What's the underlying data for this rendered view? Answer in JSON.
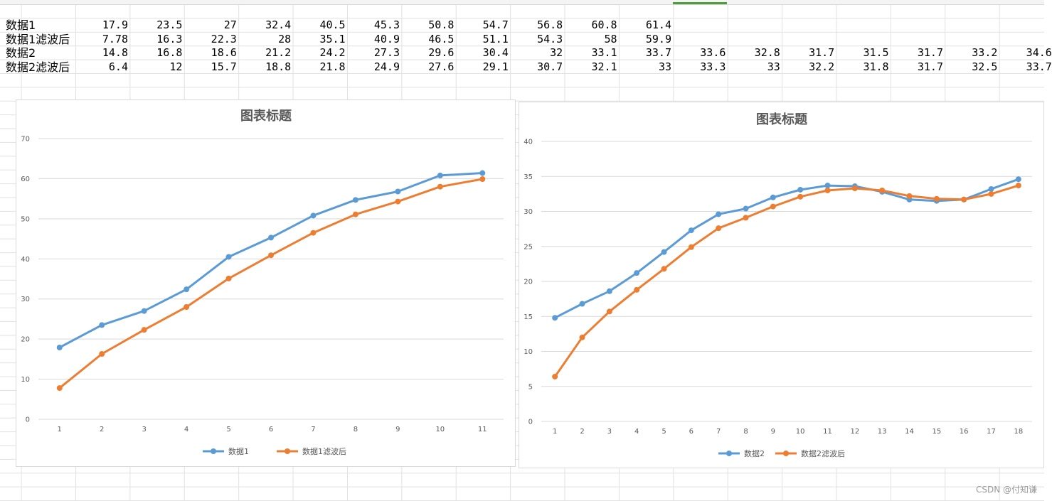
{
  "sheet": {
    "rows": [
      {
        "label": "数据1",
        "values": [
          "17.9",
          "23.5",
          "27",
          "32.4",
          "40.5",
          "45.3",
          "50.8",
          "54.7",
          "56.8",
          "60.8",
          "61.4"
        ]
      },
      {
        "label": "数据1滤波后",
        "values": [
          "7.78",
          "16.3",
          "22.3",
          "28",
          "35.1",
          "40.9",
          "46.5",
          "51.1",
          "54.3",
          "58",
          "59.9"
        ]
      },
      {
        "label": "数据2",
        "values": [
          "14.8",
          "16.8",
          "18.6",
          "21.2",
          "24.2",
          "27.3",
          "29.6",
          "30.4",
          "32",
          "33.1",
          "33.7",
          "33.6",
          "32.8",
          "31.7",
          "31.5",
          "31.7",
          "33.2",
          "34.6"
        ]
      },
      {
        "label": "数据2滤波后",
        "values": [
          "6.4",
          "12",
          "15.7",
          "18.8",
          "21.8",
          "24.9",
          "27.6",
          "29.1",
          "30.7",
          "32.1",
          "33",
          "33.3",
          "33",
          "32.2",
          "31.8",
          "31.7",
          "32.5",
          "33.7"
        ]
      }
    ]
  },
  "chart_data": [
    {
      "type": "line",
      "title": "图表标题",
      "categories": [
        "1",
        "2",
        "3",
        "4",
        "5",
        "6",
        "7",
        "8",
        "9",
        "10",
        "11"
      ],
      "ylim": [
        0,
        70
      ],
      "yticks": [
        "0",
        "10",
        "20",
        "30",
        "40",
        "50",
        "60",
        "70"
      ],
      "grid": true,
      "legend": "bottom",
      "series": [
        {
          "name": "数据1",
          "color": "#5b9bd5",
          "values": [
            17.9,
            23.5,
            27,
            32.4,
            40.5,
            45.3,
            50.8,
            54.7,
            56.8,
            60.8,
            61.4
          ]
        },
        {
          "name": "数据1滤波后",
          "color": "#ed7d31",
          "values": [
            7.78,
            16.3,
            22.3,
            28,
            35.1,
            40.9,
            46.5,
            51.1,
            54.3,
            58,
            59.9
          ]
        }
      ]
    },
    {
      "type": "line",
      "title": "图表标题",
      "categories": [
        "1",
        "2",
        "3",
        "4",
        "5",
        "6",
        "7",
        "8",
        "9",
        "10",
        "11",
        "12",
        "13",
        "14",
        "15",
        "16",
        "17",
        "18"
      ],
      "ylim": [
        0,
        40
      ],
      "yticks": [
        "0",
        "5",
        "10",
        "15",
        "20",
        "25",
        "30",
        "35",
        "40"
      ],
      "grid": true,
      "legend": "bottom",
      "series": [
        {
          "name": "数据2",
          "color": "#5b9bd5",
          "values": [
            14.8,
            16.8,
            18.6,
            21.2,
            24.2,
            27.3,
            29.6,
            30.4,
            32,
            33.1,
            33.7,
            33.6,
            32.8,
            31.7,
            31.5,
            31.7,
            33.2,
            34.6
          ]
        },
        {
          "name": "数据2滤波后",
          "color": "#ed7d31",
          "values": [
            6.4,
            12,
            15.7,
            18.8,
            21.8,
            24.9,
            27.6,
            29.1,
            30.7,
            32.1,
            33,
            33.3,
            33,
            32.2,
            31.8,
            31.7,
            32.5,
            33.7
          ]
        }
      ]
    }
  ],
  "watermark": "CSDN @付知谦"
}
